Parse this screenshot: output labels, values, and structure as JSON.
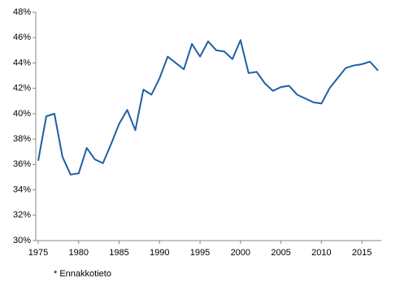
{
  "chart_data": {
    "type": "line",
    "x": [
      1975,
      1976,
      1977,
      1978,
      1979,
      1980,
      1981,
      1982,
      1983,
      1984,
      1985,
      1986,
      1987,
      1988,
      1989,
      1990,
      1991,
      1992,
      1993,
      1994,
      1995,
      1996,
      1997,
      1998,
      1999,
      2000,
      2001,
      2002,
      2003,
      2004,
      2005,
      2006,
      2007,
      2008,
      2009,
      2010,
      2011,
      2012,
      2013,
      2014,
      2015,
      2016,
      2017
    ],
    "series": [
      {
        "color": "#1f5fa6",
        "values": [
          36.3,
          39.8,
          40.0,
          36.6,
          35.2,
          35.3,
          37.3,
          36.4,
          36.1,
          37.6,
          39.2,
          40.3,
          38.7,
          41.9,
          41.5,
          42.8,
          44.5,
          44.0,
          43.5,
          45.5,
          44.5,
          45.7,
          45.0,
          44.9,
          44.3,
          45.8,
          43.2,
          43.3,
          42.4,
          41.8,
          42.1,
          42.2,
          41.5,
          41.2,
          40.9,
          40.8,
          42.0,
          42.8,
          43.6,
          43.8,
          43.9,
          44.1,
          43.4
        ]
      }
    ],
    "xlim": [
      1975,
      2017
    ],
    "xticks": [
      1975,
      1980,
      1985,
      1990,
      1995,
      2000,
      2005,
      2010,
      2015
    ],
    "ylim": [
      30,
      48
    ],
    "yticks": [
      {
        "value": 30,
        "label": "30%"
      },
      {
        "value": 32,
        "label": "32%"
      },
      {
        "value": 34,
        "label": "34%"
      },
      {
        "value": 36,
        "label": "36%"
      },
      {
        "value": 38,
        "label": "38%"
      },
      {
        "value": 40,
        "label": "40%"
      },
      {
        "value": 42,
        "label": "42%"
      },
      {
        "value": 44,
        "label": "44%"
      },
      {
        "value": 46,
        "label": "46%"
      },
      {
        "value": 48,
        "label": "48%"
      }
    ],
    "annotation": "* Ennakkotieto"
  }
}
